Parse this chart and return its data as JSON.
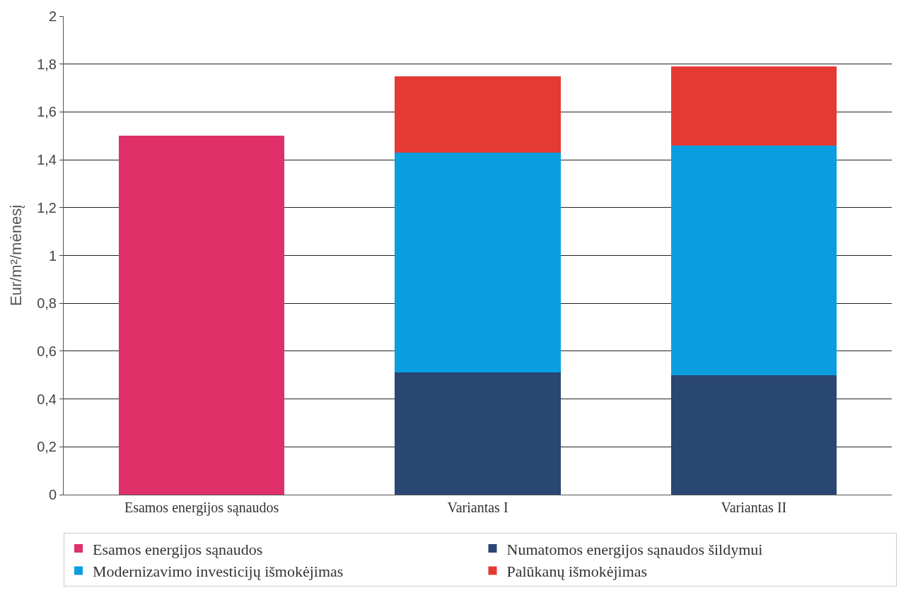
{
  "chart_data": {
    "type": "bar",
    "stacked": true,
    "ylabel": "Eur/m²/mėnesį",
    "categories": [
      "Esamos energijos sąnaudos",
      "Variantas I",
      "Variantas II"
    ],
    "series": [
      {
        "name": "Esamos energijos sąnaudos",
        "color": "#e0306a",
        "values": [
          1.5,
          null,
          null
        ]
      },
      {
        "name": "Numatomos energijos sąnaudos šildymui",
        "color": "#2a4673",
        "values": [
          null,
          0.51,
          0.5
        ]
      },
      {
        "name": "Modernizavimo investicijų išmokėjimas",
        "color": "#0a9ee0",
        "values": [
          null,
          0.92,
          0.96
        ]
      },
      {
        "name": "Palūkanų išmokėjimas",
        "color": "#e43a33",
        "values": [
          null,
          0.32,
          0.33
        ]
      }
    ],
    "ylim": [
      0,
      2
    ],
    "yticks": [
      0,
      {
        "value": 0.2,
        "label": "0,2"
      },
      {
        "value": 0.4,
        "label": "0,4"
      },
      {
        "value": 0.6,
        "label": "0,6"
      },
      {
        "value": 0.8,
        "label": "0,8"
      },
      1,
      {
        "value": 1.2,
        "label": "1,2"
      },
      {
        "value": 1.4,
        "label": "1,4"
      },
      {
        "value": 1.6,
        "label": "1,6"
      },
      {
        "value": 1.8,
        "label": "1,8"
      },
      2
    ],
    "grid": "y",
    "legend": "bottom"
  }
}
